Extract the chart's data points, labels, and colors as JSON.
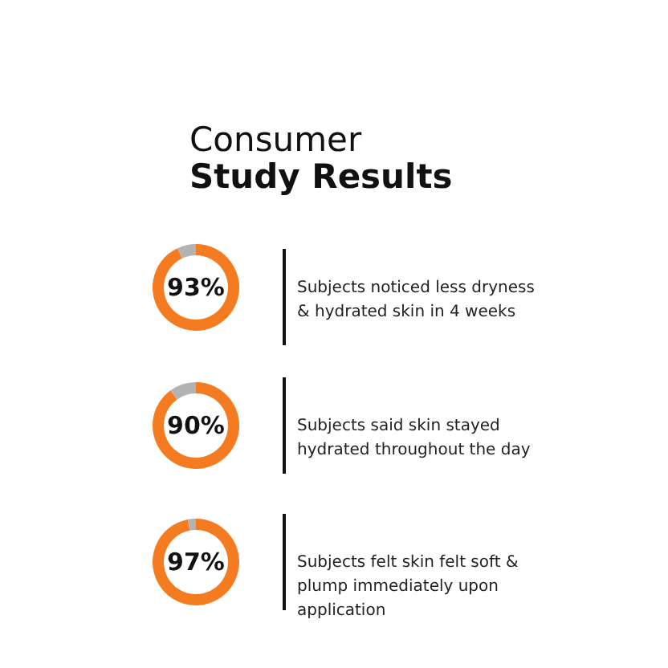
{
  "chart_data": [
    {
      "type": "donut",
      "title": "Consumer",
      "subtitle": "Study Results",
      "categories": [
        null,
        null
      ],
      "values": [
        93,
        7
      ],
      "colors": [
        "#f47b20",
        "#b3b3b3"
      ],
      "value_labels": [
        "93%",
        null
      ],
      "annotations": [
        "Subjects noticed less dryness & hydrated skin in 4 weeks"
      ]
    },
    {
      "type": "donut",
      "categories": [
        null,
        null
      ],
      "values": [
        90,
        10
      ],
      "colors": [
        "#f47b20",
        "#b3b3b3"
      ],
      "value_labels": [
        "90%",
        null
      ],
      "annotations": [
        "Subjects said skin stayed hydrated throughout the day"
      ]
    },
    {
      "type": "donut",
      "categories": [
        null,
        null
      ],
      "values": [
        97,
        3
      ],
      "colors": [
        "#f47b20",
        "#b3b3b3"
      ],
      "value_labels": [
        "97%",
        null
      ],
      "annotations": [
        "Subjects felt skin felt soft & plump immediately upon application"
      ]
    }
  ]
}
